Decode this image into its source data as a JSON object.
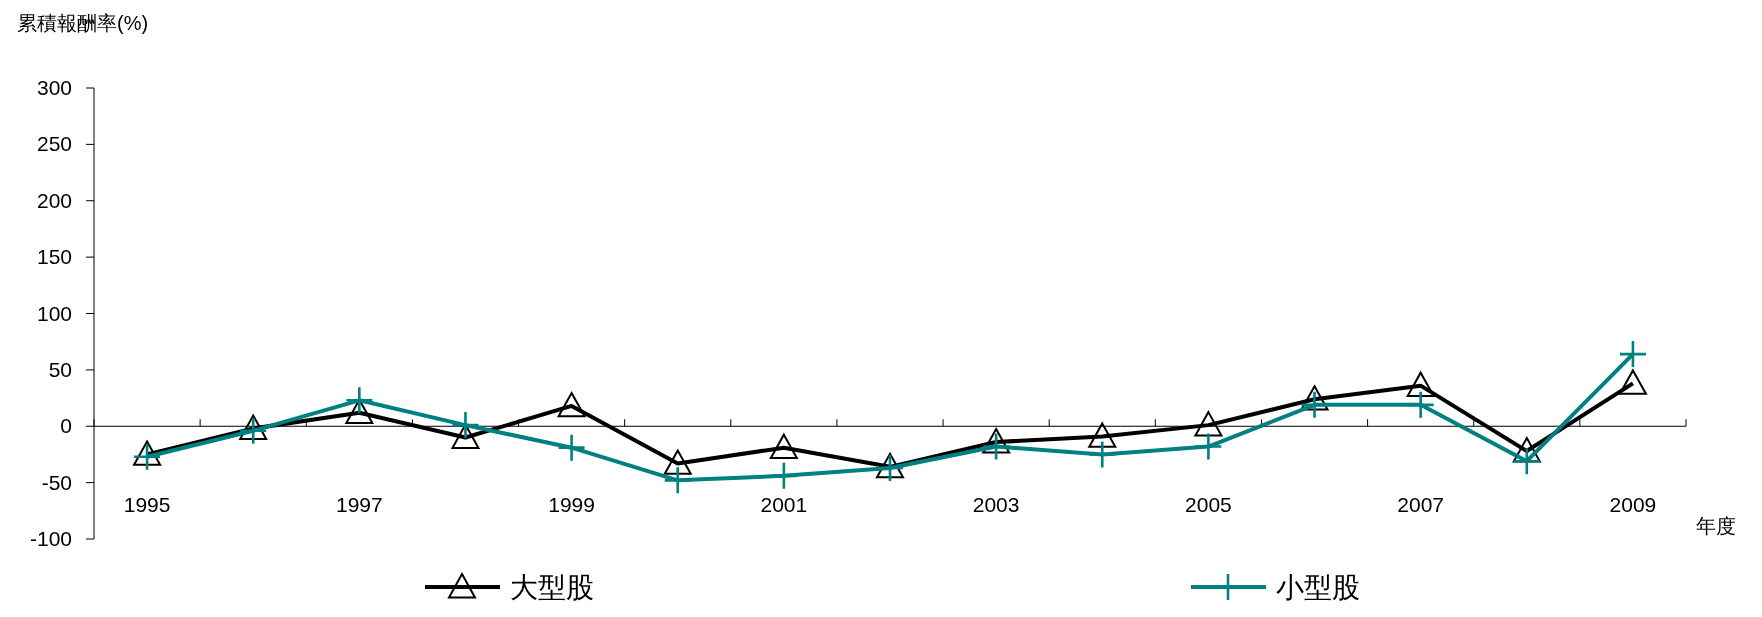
{
  "chart_data": {
    "type": "line",
    "ylabel": "累積報酬率(%)",
    "xlabel": "年度",
    "categories": [
      "1995",
      null,
      "1997",
      null,
      "1999",
      null,
      "2001",
      null,
      "2003",
      null,
      "2005",
      null,
      "2007",
      null,
      "2009"
    ],
    "series": [
      {
        "name": "大型股",
        "color": "#000000",
        "marker": "triangle",
        "values": [
          -25,
          -2,
          12,
          -10,
          18,
          -33,
          -19,
          -36,
          -14,
          -9,
          1,
          24,
          36,
          -22,
          38
        ]
      },
      {
        "name": "小型股",
        "color": "#008080",
        "marker": "cross",
        "values": [
          -27,
          -4,
          23,
          1,
          -19,
          -48,
          -44,
          -37,
          -18,
          -25,
          -18,
          19,
          19,
          -31,
          64
        ]
      }
    ],
    "ylim": [
      -100,
      300
    ],
    "yticks": [
      -100,
      -50,
      0,
      50,
      100,
      150,
      200,
      250,
      300
    ],
    "legend": "bottom",
    "line_style": "solid"
  }
}
